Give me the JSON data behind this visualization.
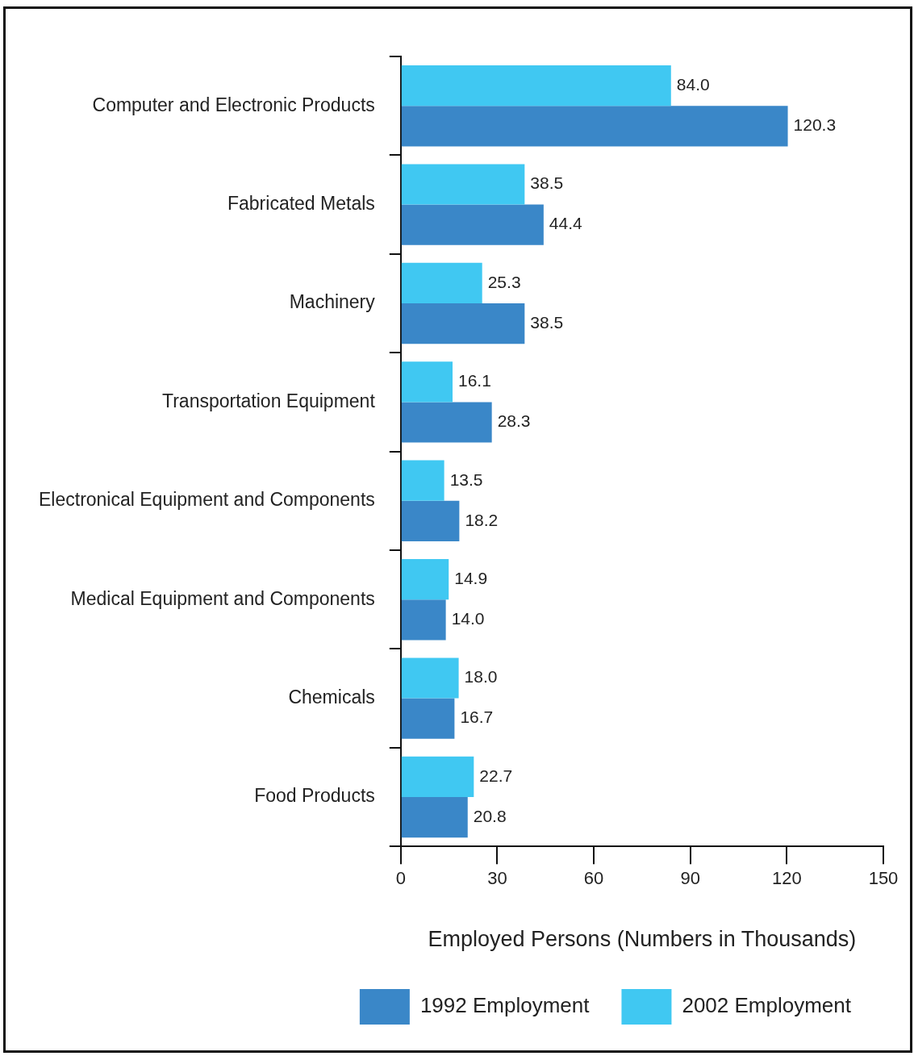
{
  "chart_data": {
    "type": "bar",
    "orientation": "horizontal",
    "xlabel": "Employed Persons (Numbers in Thousands)",
    "categories": [
      "Computer and Electronic Products",
      "Fabricated Metals",
      "Machinery",
      "Transportation Equipment",
      "Electronical Equipment and Components",
      "Medical Equipment and Components",
      "Chemicals",
      "Food Products"
    ],
    "series": [
      {
        "name": "2002 Employment",
        "color": "#40c8f2",
        "values": [
          84.0,
          38.5,
          25.3,
          16.1,
          13.5,
          14.9,
          18.0,
          22.7
        ],
        "value_labels": [
          "84.0",
          "38.5",
          "25.3",
          "16.1",
          "13.5",
          "14.9",
          "18.0",
          "22.7"
        ]
      },
      {
        "name": "1992 Employment",
        "color": "#3a87c8",
        "values": [
          120.3,
          44.4,
          38.5,
          28.3,
          18.2,
          14.0,
          16.7,
          20.8
        ],
        "value_labels": [
          "120.3",
          "44.4",
          "38.5",
          "28.3",
          "18.2",
          "14.0",
          "16.7",
          "20.8"
        ]
      }
    ],
    "xlim": [
      0,
      150
    ],
    "xticks": [
      0,
      30,
      60,
      90,
      120,
      150
    ],
    "grid": false,
    "legend": "bottom"
  }
}
